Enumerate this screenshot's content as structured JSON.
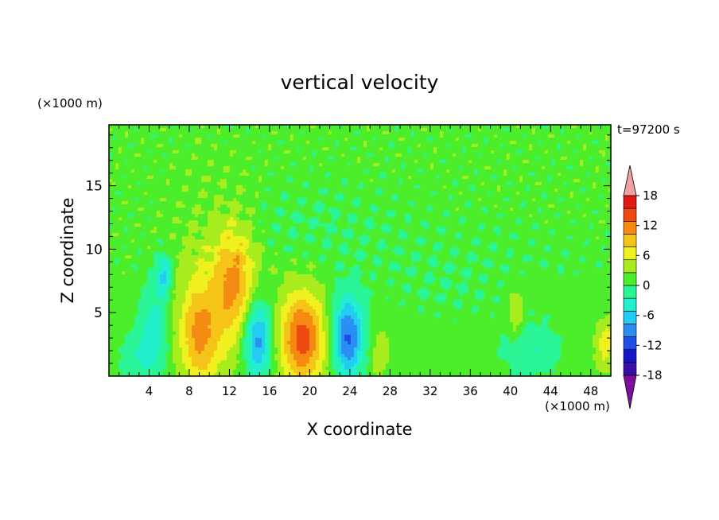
{
  "chart_data": {
    "type": "heatmap",
    "title": "vertical velocity",
    "xlabel": "X coordinate",
    "ylabel": "Z coordinate",
    "x_unit_label": "(×1000 m)",
    "y_unit_label": "(×1000 m)",
    "time_label": "t=97200 s",
    "xlim": [
      0,
      50
    ],
    "ylim": [
      0,
      19.8
    ],
    "x_ticks": [
      4,
      8,
      12,
      16,
      20,
      24,
      28,
      32,
      36,
      40,
      44,
      48
    ],
    "y_ticks": [
      5,
      10,
      15
    ],
    "colorbar": {
      "levels": [
        -21,
        -18,
        -15,
        -12,
        -9,
        -6,
        -3,
        0,
        3,
        6,
        9,
        12,
        15,
        18,
        21
      ],
      "tick_labels": [
        18,
        12,
        6,
        0,
        -6,
        -12,
        -18
      ],
      "colors": [
        "#7b0f9c",
        "#3a0fa8",
        "#1414c8",
        "#1f4fe6",
        "#2a8ff0",
        "#22ccf2",
        "#22f0cc",
        "#2af596",
        "#4ced2a",
        "#a8ec1e",
        "#f0f01e",
        "#f4c418",
        "#f48a12",
        "#ec4a10",
        "#e01a14",
        "#f0a0a0"
      ]
    },
    "field": {
      "background": 1.5,
      "features": [
        {
          "x": 9,
          "z": 3.2,
          "value": 9,
          "sx": 1.3,
          "sz": 2.6
        },
        {
          "x": 12.5,
          "z": 7.5,
          "value": 9,
          "sx": 1.4,
          "sz": 3
        },
        {
          "x": 10.5,
          "z": 6,
          "value": 4,
          "sx": 3,
          "sz": 5
        },
        {
          "x": 14.8,
          "z": 3,
          "value": -13,
          "sx": 1.0,
          "sz": 2.2
        },
        {
          "x": 19.3,
          "z": 3,
          "value": 15,
          "sx": 1.6,
          "sz": 2.6
        },
        {
          "x": 23.8,
          "z": 3,
          "value": -14,
          "sx": 1.1,
          "sz": 2.2
        },
        {
          "x": 5.5,
          "z": 8,
          "value": -9,
          "sx": 0.5,
          "sz": 1.2
        },
        {
          "x": 4.5,
          "z": 4,
          "value": -6,
          "sx": 1,
          "sz": 2.5
        },
        {
          "x": 27,
          "z": 2,
          "value": 4,
          "sx": 0.7,
          "sz": 1.5
        },
        {
          "x": 40.5,
          "z": 5,
          "value": 5,
          "sx": 0.6,
          "sz": 1.5
        },
        {
          "x": 49.5,
          "z": 2.5,
          "value": 6,
          "sx": 0.8,
          "sz": 1.5
        },
        {
          "x": 42,
          "z": 2,
          "value": -4,
          "sx": 2,
          "sz": 1.5
        },
        {
          "x": 34,
          "z": 7,
          "value": -1.5,
          "sx": 8,
          "sz": 3
        },
        {
          "x": 20,
          "z": 12,
          "value": -1.5,
          "sx": 6,
          "sz": 2
        },
        {
          "x": 3,
          "z": 1.5,
          "value": -4,
          "sx": 1.5,
          "sz": 1.5
        }
      ]
    }
  }
}
